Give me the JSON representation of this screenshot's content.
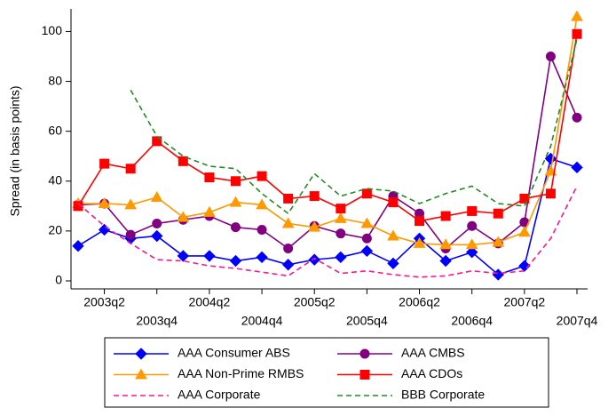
{
  "chart_data": {
    "type": "line",
    "y_label": "Spread (in basis points)",
    "categories": [
      null,
      "2003q2",
      null,
      "2003q4",
      null,
      "2004q2",
      null,
      "2004q4",
      null,
      "2005q2",
      null,
      "2005q4",
      null,
      "2006q2",
      null,
      "2006q4",
      null,
      "2007q2",
      null,
      "2007q4"
    ],
    "ylim": [
      -3,
      108
    ],
    "yticks": [
      0,
      20,
      40,
      60,
      80,
      100
    ],
    "series": [
      {
        "name": "AAA Consumer ABS",
        "color": "#0000ff",
        "marker": "diamond",
        "dash": false,
        "values": [
          14,
          20.5,
          17,
          18,
          10,
          10,
          8,
          9.5,
          6.5,
          8.5,
          9.5,
          12,
          7,
          17,
          8,
          11.5,
          2.5,
          6,
          49,
          45.5
        ]
      },
      {
        "name": "AAA CMBS",
        "color": "#800080",
        "marker": "circle",
        "dash": false,
        "values": [
          30.5,
          31,
          18.5,
          23,
          24.5,
          26,
          21.5,
          20.5,
          13,
          22,
          19,
          17,
          34,
          27,
          13,
          22,
          15,
          23.5,
          90,
          65.5
        ]
      },
      {
        "name": "AAA Non-Prime RMBS",
        "color": "#ff9900",
        "marker": "triangle",
        "dash": false,
        "values": [
          31,
          31,
          30.5,
          33.5,
          25.5,
          27.5,
          31.5,
          30.5,
          23,
          21.5,
          25,
          23,
          18,
          15,
          14.5,
          14.5,
          15.5,
          19.5,
          44,
          106
        ]
      },
      {
        "name": "AAA CDOs",
        "color": "#ff0000",
        "marker": "square",
        "dash": false,
        "values": [
          30,
          47,
          45,
          56,
          48,
          41.5,
          40,
          42,
          33,
          34,
          29,
          35,
          31.5,
          24,
          26,
          28,
          27,
          33,
          35,
          99
        ]
      },
      {
        "name": "AAA Corporate",
        "color": "#ff1493",
        "marker": "none",
        "dash": true,
        "values": [
          31,
          22,
          15,
          8.5,
          8,
          6,
          5,
          3.5,
          2,
          9,
          3,
          4,
          2.5,
          1.5,
          2,
          4,
          3,
          4,
          17,
          38
        ]
      },
      {
        "name": "BBB Corporate",
        "color": "#228b22",
        "marker": "none",
        "dash": true,
        "values": [
          null,
          null,
          76.5,
          58,
          50,
          46,
          45,
          35,
          27,
          43,
          34,
          37,
          36,
          31,
          35,
          38,
          31,
          30,
          54,
          97
        ]
      }
    ]
  }
}
